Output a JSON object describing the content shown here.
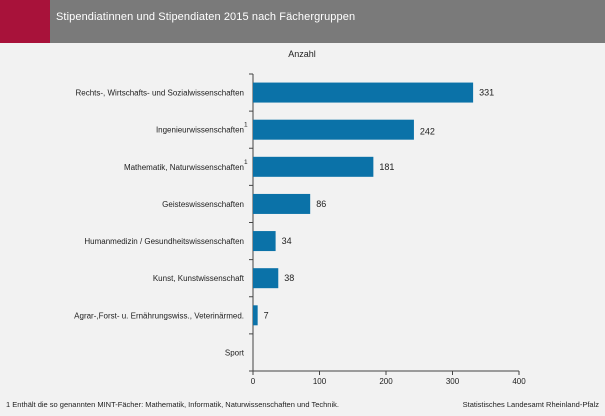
{
  "header": {
    "title": "Stipendiatinnen und Stipendiaten 2015 nach Fächergruppen",
    "accent_color": "#a8123a",
    "bar_color": "#7a7a7a"
  },
  "chart_data": {
    "type": "bar",
    "orientation": "horizontal",
    "title": "Stipendiatinnen und Stipendiaten 2015 nach Fächergruppen",
    "xlabel": "Anzahl",
    "ylabel": "",
    "xlim": [
      0,
      400
    ],
    "xticks": [
      0,
      100,
      200,
      300,
      400
    ],
    "categories": [
      "Rechts-, Wirtschafts- und Sozialwissenschaften",
      "Ingenieurwissenschaften",
      "Mathematik, Naturwissenschaften",
      "Geisteswissenschaften",
      "Humanmedizin / Gesundheitswissenschaften",
      "Kunst, Kunstwissenschaft",
      "Agrar-,Forst- u. Ernährungswiss., Veterinärmed.",
      "Sport"
    ],
    "footnote_markers": [
      "",
      "1",
      "1",
      "",
      "",
      "",
      "",
      ""
    ],
    "values": [
      331,
      242,
      181,
      86,
      34,
      38,
      7,
      0
    ],
    "value_labels": [
      "331",
      "242",
      "181",
      "86",
      "34",
      "38",
      "7",
      ""
    ],
    "bar_color": "#0b72a8",
    "grid": false,
    "legend": "none"
  },
  "footnote": {
    "marker": "1",
    "text": "Enthält die so genannten MINT-Fächer: Mathematik, Informatik, Naturwissenschaften und Technik."
  },
  "source": "Statistisches Landesamt Rheinland-Pfalz"
}
